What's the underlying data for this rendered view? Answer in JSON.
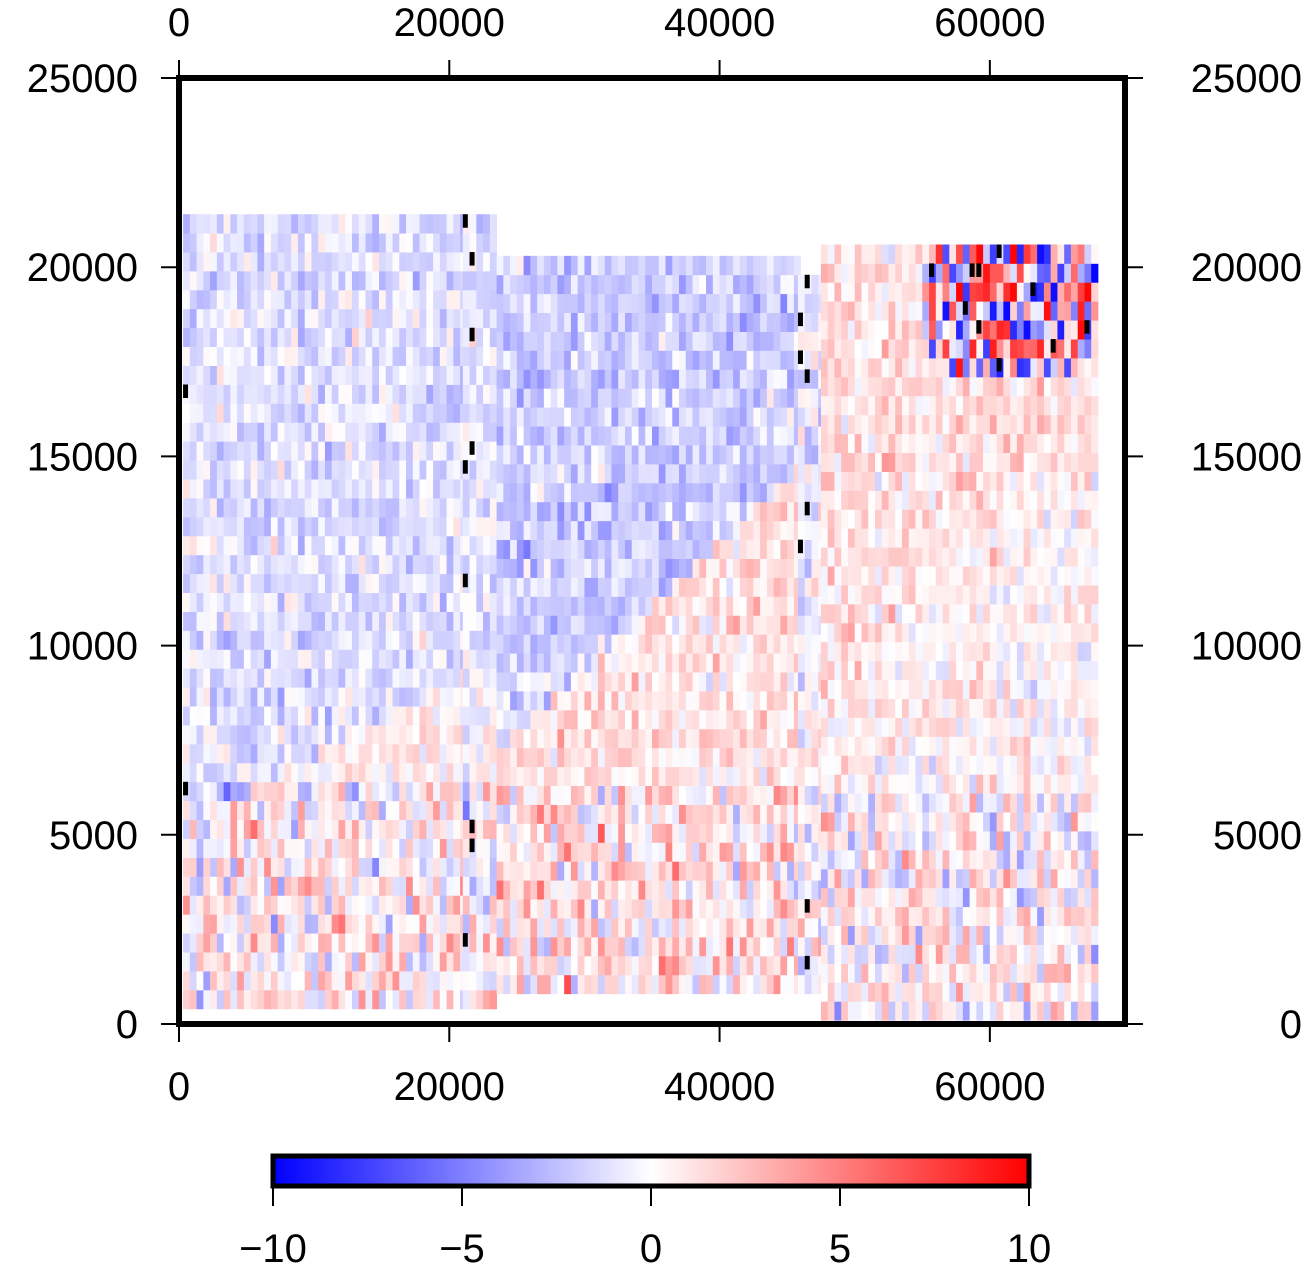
{
  "chart_data": {
    "type": "heatmap",
    "title": "",
    "xlabel": "",
    "ylabel": "",
    "xlim": [
      0,
      70000
    ],
    "ylim": [
      0,
      25000
    ],
    "x_ticks": [
      0,
      20000,
      40000,
      60000
    ],
    "y_ticks": [
      0,
      5000,
      10000,
      15000,
      20000,
      25000
    ],
    "x_tick_labels": [
      "0",
      "20000",
      "40000",
      "60000"
    ],
    "y_tick_labels": [
      "0",
      "5000",
      "10000",
      "15000",
      "20000",
      "25000"
    ],
    "axes_on_all_sides": true,
    "grid": false,
    "colorbar": {
      "placement": "bottom",
      "range": [
        -10,
        10
      ],
      "ticks": [
        -10,
        -5,
        0,
        5,
        10
      ],
      "tick_labels": [
        "−10",
        "−5",
        "0",
        "5",
        "10"
      ],
      "colors": [
        "#0000ff",
        "#ffffff",
        "#ff0000"
      ]
    },
    "nodata_color": "#000000",
    "cell_size": 500,
    "swaths": [
      {
        "x_range": [
          300,
          21000
        ],
        "y_range": [
          400,
          21000
        ],
        "upper_mean": -1.2,
        "lower_mean": 0.6,
        "transition_y": [
          5000,
          9000
        ]
      },
      {
        "x_range": [
          21000,
          23500
        ],
        "y_range": [
          400,
          21000
        ],
        "upper_mean": -0.8,
        "lower_mean": 0.4,
        "transition_y": [
          5000,
          9000
        ]
      },
      {
        "x_range": [
          23500,
          45800
        ],
        "y_range": [
          800,
          20200
        ],
        "upper_mean": -2.0,
        "lower_mean": 1.2,
        "transition_y": [
          7000,
          14500
        ]
      },
      {
        "x_range": [
          45800,
          47500
        ],
        "y_range": [
          800,
          19500
        ],
        "upper_mean": -1.0,
        "lower_mean": 0.6,
        "transition_y": [
          7000,
          14500
        ]
      },
      {
        "x_range": [
          47500,
          68000
        ],
        "y_range": [
          100,
          20600
        ],
        "upper_mean": 1.2,
        "lower_mean": 0.4,
        "transition_y": [
          8000,
          16000
        ]
      }
    ],
    "high_variance_patch": {
      "x_range": [
        55000,
        68000
      ],
      "y_range": [
        17000,
        20600
      ],
      "amplitude": 10
    }
  }
}
